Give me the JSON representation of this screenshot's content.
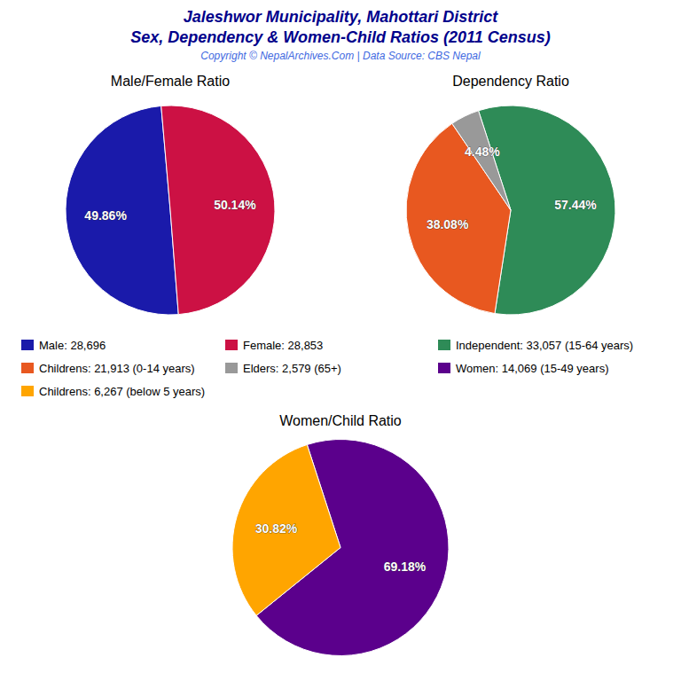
{
  "title": "Jaleshwor Municipality, Mahottari District",
  "subtitle": "Sex, Dependency & Women-Child Ratios (2011 Census)",
  "annotations": [
    "Copyright © NepalArchives.Com | Data Source: CBS Nepal"
  ],
  "chart_data": [
    {
      "type": "pie",
      "title": "Male/Female Ratio",
      "categories": [
        "Male: 28,696",
        "Female: 28,853"
      ],
      "values": [
        49.86,
        50.14
      ],
      "value_labels": [
        "49.86%",
        "50.14%"
      ],
      "colors": [
        "#1a1aaa",
        "#cc1144"
      ],
      "data_labels": true,
      "legend": "bottom"
    },
    {
      "type": "pie",
      "title": "Dependency Ratio",
      "categories": [
        "Independent: 33,057 (15-64 years)",
        "Childrens: 21,913 (0-14 years)",
        "Elders: 2,579 (65+)"
      ],
      "values": [
        57.44,
        38.08,
        4.48
      ],
      "value_labels": [
        "57.44%",
        "38.08%",
        "4.48%"
      ],
      "colors": [
        "#2e8b57",
        "#e85820",
        "#999999"
      ],
      "data_labels": true,
      "legend": "bottom"
    },
    {
      "type": "pie",
      "title": "Women/Child Ratio",
      "categories": [
        "Women: 14,069 (15-49 years)",
        "Childrens: 6,267 (below 5 years)"
      ],
      "values": [
        69.18,
        30.82
      ],
      "value_labels": [
        "69.18%",
        "30.82%"
      ],
      "colors": [
        "#5b008c",
        "#ffa500"
      ],
      "data_labels": true,
      "legend": "top"
    }
  ]
}
